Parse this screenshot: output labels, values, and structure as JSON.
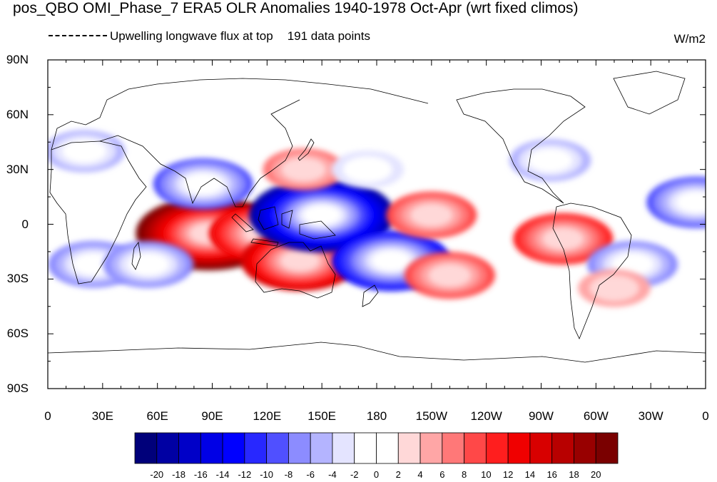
{
  "title": "pos_QBO OMI_Phase_7 ERA5 OLR Anomalies 1940-1978 Oct-Apr (wrt fixed climos)",
  "legend": {
    "label": "Upwelling longwave flux at top",
    "count_text": "191 data points"
  },
  "units": "W/m2",
  "lat_labels": [
    "90N",
    "60N",
    "30N",
    "0",
    "30S",
    "60S",
    "90S"
  ],
  "lon_labels": [
    "0",
    "30E",
    "60E",
    "90E",
    "120E",
    "150E",
    "180",
    "150W",
    "120W",
    "90W",
    "60W",
    "30W",
    "0"
  ],
  "colorbar": {
    "labels": [
      "-20",
      "-18",
      "-16",
      "-14",
      "-12",
      "-10",
      "-8",
      "-6",
      "-4",
      "-2",
      "0",
      "2",
      "4",
      "6",
      "8",
      "10",
      "12",
      "14",
      "16",
      "18",
      "20"
    ],
    "colors": [
      "#00007a",
      "#0000a3",
      "#0000c8",
      "#0000e6",
      "#0000ff",
      "#2828ff",
      "#5050ff",
      "#8c8cff",
      "#b4b4ff",
      "#e4e4ff",
      "#ffffff",
      "#ffffff",
      "#ffd8d8",
      "#ffa6a6",
      "#ff7878",
      "#ff4848",
      "#ff1e1e",
      "#f00000",
      "#d80000",
      "#b80000",
      "#980000",
      "#7a0000"
    ]
  },
  "anomalies": [
    {
      "name": "indian-ocean-positive",
      "lon": 88,
      "lat": -5,
      "value": 20
    },
    {
      "name": "maritime-continent-positive",
      "lon": 118,
      "lat": -5,
      "value": 12
    },
    {
      "name": "australia-positive",
      "lon": 138,
      "lat": -20,
      "value": 14
    },
    {
      "name": "west-pacific-negative",
      "lon": 150,
      "lat": 5,
      "value": -20
    },
    {
      "name": "arabia-india-negative",
      "lon": 85,
      "lat": 22,
      "value": -10
    },
    {
      "name": "south-pacific-negative",
      "lon": 188,
      "lat": -20,
      "value": -14
    },
    {
      "name": "east-pacific-positive",
      "lon": 210,
      "lat": 5,
      "value": 8
    },
    {
      "name": "south-america-positive",
      "lon": 282,
      "lat": -8,
      "value": 10
    },
    {
      "name": "atlantic-negative",
      "lon": 355,
      "lat": 12,
      "value": -10
    },
    {
      "name": "south-atlantic-negative",
      "lon": 320,
      "lat": -22,
      "value": -8
    },
    {
      "name": "south-africa-negative",
      "lon": 25,
      "lat": -22,
      "value": -8
    },
    {
      "name": "madagascar-negative",
      "lon": 55,
      "lat": -22,
      "value": -8
    },
    {
      "name": "japan-positive",
      "lon": 140,
      "lat": 30,
      "value": 6
    },
    {
      "name": "north-pacific-negative",
      "lon": 175,
      "lat": 30,
      "value": -4
    },
    {
      "name": "europe-negative",
      "lon": 20,
      "lat": 40,
      "value": -6
    },
    {
      "name": "north-america-negative",
      "lon": 275,
      "lat": 35,
      "value": -6
    },
    {
      "name": "south-pacific-east-positive",
      "lon": 220,
      "lat": -28,
      "value": 8
    },
    {
      "name": "south-atlantic-positive",
      "lon": 310,
      "lat": -35,
      "value": 4
    }
  ]
}
